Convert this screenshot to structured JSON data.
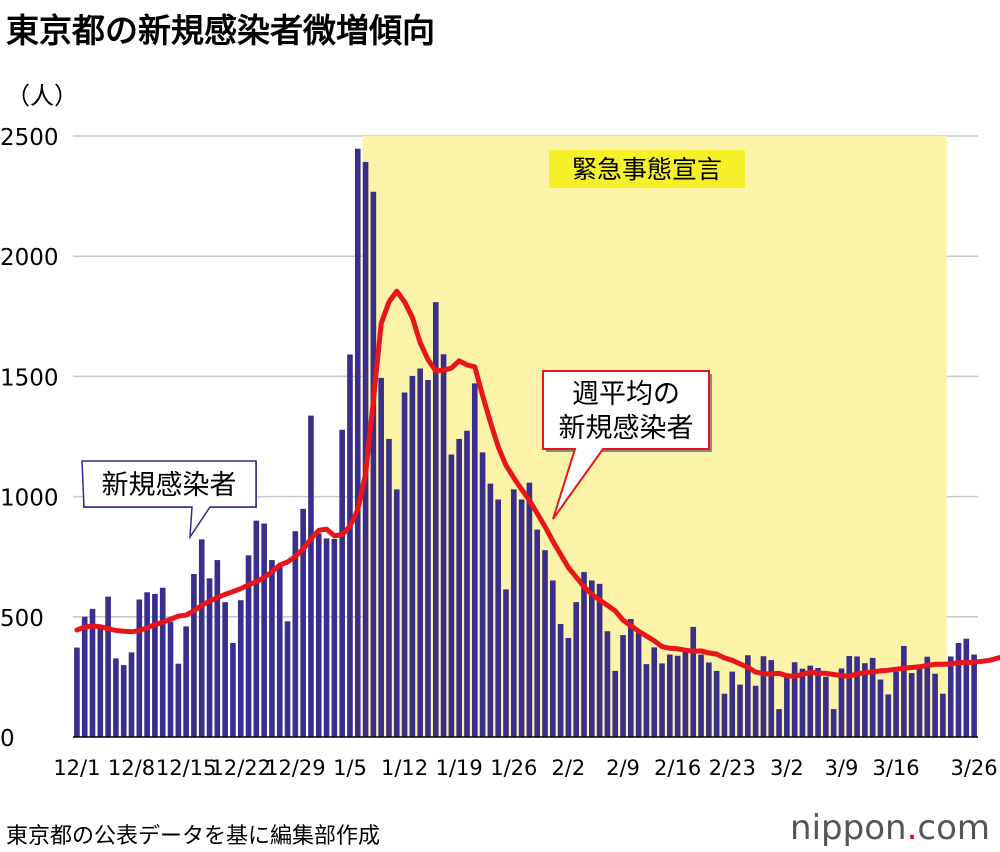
{
  "title": "東京都の新規感染者微増傾向",
  "unit_label": "（人）",
  "source": "東京都の公表データを基に編集部作成",
  "logo": {
    "text": "nippon",
    "dot": ".",
    "suffix": "com"
  },
  "colors": {
    "bar": "#3a2e8c",
    "line": "#e8161b",
    "highlight": "#faf3a8",
    "label_box": "#f5f02a",
    "grid": "#c8c8c8"
  },
  "chart_data": {
    "type": "bar",
    "title": "東京都の新規感染者微増傾向",
    "ylabel": "（人）",
    "ylim": [
      0,
      2500
    ],
    "yticks": [
      0,
      500,
      1000,
      1500,
      2000,
      2500
    ],
    "x_tick_labels": [
      {
        "index": 0,
        "label": "12/1"
      },
      {
        "index": 7,
        "label": "12/8"
      },
      {
        "index": 14,
        "label": "12/15"
      },
      {
        "index": 21,
        "label": "12/22"
      },
      {
        "index": 28,
        "label": "12/29"
      },
      {
        "index": 35,
        "label": "1/5"
      },
      {
        "index": 42,
        "label": "1/12"
      },
      {
        "index": 49,
        "label": "1/19"
      },
      {
        "index": 56,
        "label": "1/26"
      },
      {
        "index": 63,
        "label": "2/2"
      },
      {
        "index": 70,
        "label": "2/9"
      },
      {
        "index": 77,
        "label": "2/16"
      },
      {
        "index": 84,
        "label": "2/23"
      },
      {
        "index": 91,
        "label": "3/2"
      },
      {
        "index": 98,
        "label": "3/9"
      },
      {
        "index": 105,
        "label": "3/16"
      },
      {
        "index": 115,
        "label": "3/26"
      }
    ],
    "highlight": {
      "label": "緊急事態宣言",
      "start_index": 37,
      "end_index": 111
    },
    "series": [
      {
        "name": "新規感染者",
        "type": "bar",
        "values": [
          372,
          500,
          533,
          459,
          584,
          327,
          299,
          352,
          572,
          602,
          595,
          621,
          480,
          305,
          460,
          678,
          822,
          660,
          736,
          561,
          391,
          569,
          756,
          900,
          888,
          736,
          708,
          481,
          856,
          949,
          1337,
          847,
          826,
          824,
          1278,
          1591,
          2447,
          2392,
          2268,
          1494,
          1240,
          1030,
          1433,
          1502,
          1533,
          1485,
          1809,
          1592,
          1175,
          1240,
          1274,
          1471,
          1184,
          1054,
          988,
          614,
          1030,
          988,
          1058,
          863,
          777,
          651,
          470,
          412,
          561,
          686,
          651,
          637,
          440,
          275,
          424,
          491,
          433,
          303,
          373,
          306,
          343,
          338,
          360,
          458,
          343,
          310,
          275,
          180,
          272,
          218,
          340,
          213,
          336,
          320,
          116,
          253,
          311,
          284,
          297,
          287,
          251,
          116,
          285,
          337,
          335,
          307,
          329,
          239,
          177,
          272,
          379,
          266,
          292,
          334,
          263,
          180,
          335,
          391,
          409,
          343
        ]
      },
      {
        "name": "週平均の新規感染者",
        "type": "line",
        "values": [
          445,
          457,
          462,
          459,
          451,
          443,
          440,
          438,
          442,
          455,
          467,
          478,
          490,
          503,
          507,
          525,
          548,
          565,
          580,
          593,
          605,
          617,
          633,
          646,
          663,
          687,
          715,
          728,
          751,
          782,
          825,
          860,
          865,
          837,
          842,
          877,
          945,
          1095,
          1400,
          1720,
          1810,
          1855,
          1810,
          1745,
          1640,
          1570,
          1523,
          1525,
          1535,
          1565,
          1548,
          1540,
          1420,
          1310,
          1207,
          1130,
          1078,
          1030,
          985,
          930,
          875,
          815,
          760,
          705,
          665,
          625,
          594,
          570,
          548,
          525,
          486,
          463,
          440,
          420,
          400,
          376,
          369,
          367,
          361,
          357,
          358,
          350,
          345,
          329,
          319,
          304,
          290,
          270,
          263,
          262,
          265,
          255,
          253,
          260,
          270,
          265,
          265,
          260,
          255,
          253,
          262,
          268,
          271,
          275,
          278,
          282,
          286,
          289,
          292,
          298,
          302,
          303,
          304,
          309,
          310,
          311,
          315,
          319,
          328,
          335
        ]
      }
    ],
    "annotations": [
      {
        "text": "新規感染者",
        "target": "bars"
      },
      {
        "text": "週平均の\n新規感染者",
        "target": "line"
      }
    ]
  }
}
